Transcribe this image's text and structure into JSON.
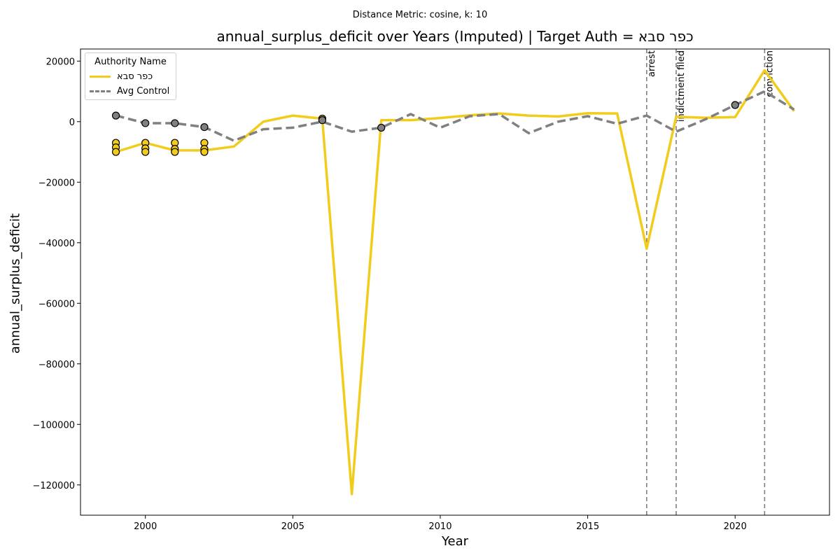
{
  "suptitle": "Distance Metric: cosine, k: 10",
  "chart_data": {
    "type": "line",
    "title": "annual_surplus_deficit over Years (Imputed) | Target Auth = כפר סבא",
    "xlabel": "Year",
    "ylabel": "annual_surplus_deficit",
    "xlim": [
      1997.8,
      2023.2
    ],
    "ylim": [
      -130000,
      24000
    ],
    "xticks": [
      2000,
      2005,
      2010,
      2015,
      2020
    ],
    "yticks": [
      20000,
      0,
      -20000,
      -40000,
      -60000,
      -80000,
      -100000,
      -120000
    ],
    "legend": {
      "title": "Authority Name",
      "placement": "upper-left"
    },
    "series": [
      {
        "name": "כפר סבא",
        "color": "#F2CC1C",
        "style": "solid",
        "x": [
          1999,
          2000,
          2001,
          2002,
          2003,
          2004,
          2005,
          2006,
          2007,
          2008,
          2009,
          2010,
          2011,
          2012,
          2013,
          2014,
          2015,
          2016,
          2017,
          2018,
          2019,
          2020,
          2021,
          2022
        ],
        "y": [
          -10000,
          -7000,
          -9500,
          -9500,
          -8200,
          0,
          2000,
          1000,
          -123000,
          500,
          500,
          1200,
          2100,
          2700,
          2000,
          1700,
          2800,
          2700,
          -42000,
          1600,
          1300,
          1500,
          17000,
          3500
        ]
      },
      {
        "name": "Avg Control",
        "color": "#808080",
        "style": "dashed",
        "x": [
          1999,
          2000,
          2001,
          2002,
          2003,
          2004,
          2005,
          2006,
          2007,
          2008,
          2009,
          2010,
          2011,
          2012,
          2013,
          2014,
          2015,
          2016,
          2017,
          2018,
          2019,
          2020,
          2021,
          2022
        ],
        "y": [
          2000,
          -500,
          -500,
          -1800,
          -6300,
          -2500,
          -2000,
          0,
          -3300,
          -2000,
          2500,
          -2000,
          1800,
          2500,
          -3800,
          0,
          1800,
          -700,
          2000,
          -3300,
          800,
          5500,
          10000,
          4000
        ]
      }
    ],
    "markers": [
      {
        "x": 1999,
        "y": -7000,
        "color": "#F2CC1C"
      },
      {
        "x": 1999,
        "y": -8500,
        "color": "#F2CC1C"
      },
      {
        "x": 1999,
        "y": -10000,
        "color": "#F2CC1C"
      },
      {
        "x": 2000,
        "y": -7000,
        "color": "#F2CC1C"
      },
      {
        "x": 2000,
        "y": -8800,
        "color": "#F2CC1C"
      },
      {
        "x": 2000,
        "y": -10000,
        "color": "#F2CC1C"
      },
      {
        "x": 2001,
        "y": -7000,
        "color": "#F2CC1C"
      },
      {
        "x": 2001,
        "y": -9000,
        "color": "#F2CC1C"
      },
      {
        "x": 2001,
        "y": -10000,
        "color": "#F2CC1C"
      },
      {
        "x": 2002,
        "y": -7000,
        "color": "#F2CC1C"
      },
      {
        "x": 2002,
        "y": -9000,
        "color": "#F2CC1C"
      },
      {
        "x": 2002,
        "y": -10000,
        "color": "#F2CC1C"
      },
      {
        "x": 2006,
        "y": 1000,
        "color": "#F2CC1C"
      },
      {
        "x": 1999,
        "y": 2000,
        "color": "#808080"
      },
      {
        "x": 2000,
        "y": -500,
        "color": "#808080"
      },
      {
        "x": 2001,
        "y": -500,
        "color": "#808080"
      },
      {
        "x": 2002,
        "y": -1800,
        "color": "#808080"
      },
      {
        "x": 2006,
        "y": 500,
        "color": "#808080"
      },
      {
        "x": 2008,
        "y": -2000,
        "color": "#808080"
      },
      {
        "x": 2020,
        "y": 5500,
        "color": "#808080"
      }
    ],
    "events": [
      {
        "x": 2017,
        "label": "arrest"
      },
      {
        "x": 2018,
        "label": "indictment filed"
      },
      {
        "x": 2021,
        "label": "conviction"
      }
    ]
  }
}
